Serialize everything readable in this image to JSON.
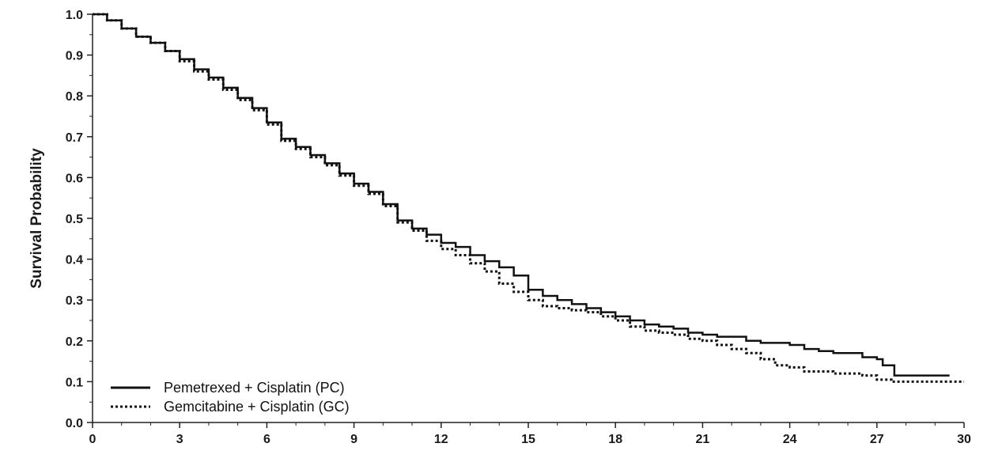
{
  "chart_data": {
    "type": "line",
    "title": "",
    "xlabel": "",
    "ylabel": "Survival Probability",
    "xlim": [
      0,
      30
    ],
    "ylim": [
      0,
      1.0
    ],
    "x_ticks": [
      "0",
      "3",
      "6",
      "9",
      "12",
      "15",
      "18",
      "21",
      "24",
      "27",
      "30"
    ],
    "y_ticks": [
      "0.0",
      "0.1",
      "0.2",
      "0.3",
      "0.4",
      "0.5",
      "0.6",
      "0.7",
      "0.8",
      "0.9",
      "1.0"
    ],
    "grid": false,
    "legend_position": "bottom-left",
    "series": [
      {
        "name": "Pemetrexed + Cisplatin (PC)",
        "style": "solid",
        "color": "#111111",
        "points": [
          [
            0,
            1.0
          ],
          [
            0.5,
            0.985
          ],
          [
            1,
            0.965
          ],
          [
            1.5,
            0.945
          ],
          [
            2,
            0.93
          ],
          [
            2.5,
            0.91
          ],
          [
            3,
            0.89
          ],
          [
            3.5,
            0.865
          ],
          [
            4,
            0.845
          ],
          [
            4.5,
            0.82
          ],
          [
            5,
            0.795
          ],
          [
            5.5,
            0.77
          ],
          [
            6,
            0.735
          ],
          [
            6.5,
            0.695
          ],
          [
            7,
            0.675
          ],
          [
            7.5,
            0.655
          ],
          [
            8,
            0.635
          ],
          [
            8.5,
            0.61
          ],
          [
            9,
            0.585
          ],
          [
            9.5,
            0.565
          ],
          [
            10,
            0.535
          ],
          [
            10.5,
            0.495
          ],
          [
            11,
            0.475
          ],
          [
            11.5,
            0.46
          ],
          [
            12,
            0.44
          ],
          [
            12.5,
            0.43
          ],
          [
            13,
            0.41
          ],
          [
            13.5,
            0.395
          ],
          [
            14,
            0.38
          ],
          [
            14.5,
            0.36
          ],
          [
            15,
            0.325
          ],
          [
            15.5,
            0.31
          ],
          [
            16,
            0.3
          ],
          [
            16.5,
            0.29
          ],
          [
            17,
            0.28
          ],
          [
            17.5,
            0.27
          ],
          [
            18,
            0.26
          ],
          [
            18.5,
            0.25
          ],
          [
            19,
            0.24
          ],
          [
            19.5,
            0.235
          ],
          [
            20,
            0.23
          ],
          [
            20.5,
            0.22
          ],
          [
            21,
            0.215
          ],
          [
            21.5,
            0.21
          ],
          [
            22,
            0.21
          ],
          [
            22.5,
            0.2
          ],
          [
            23,
            0.195
          ],
          [
            23.5,
            0.195
          ],
          [
            24,
            0.19
          ],
          [
            24.5,
            0.18
          ],
          [
            25,
            0.175
          ],
          [
            25.5,
            0.17
          ],
          [
            26,
            0.17
          ],
          [
            26.5,
            0.16
          ],
          [
            27,
            0.155
          ],
          [
            27.2,
            0.14
          ],
          [
            27.5,
            0.14
          ],
          [
            27.6,
            0.115
          ],
          [
            28,
            0.115
          ],
          [
            28.5,
            0.115
          ],
          [
            29,
            0.115
          ],
          [
            29.5,
            0.115
          ]
        ]
      },
      {
        "name": "Gemcitabine + Cisplatin (GC)",
        "style": "dotted",
        "color": "#111111",
        "points": [
          [
            0,
            1.0
          ],
          [
            0.5,
            0.985
          ],
          [
            1,
            0.965
          ],
          [
            1.5,
            0.945
          ],
          [
            2,
            0.93
          ],
          [
            2.5,
            0.91
          ],
          [
            3,
            0.885
          ],
          [
            3.5,
            0.86
          ],
          [
            4,
            0.84
          ],
          [
            4.5,
            0.815
          ],
          [
            5,
            0.79
          ],
          [
            5.5,
            0.765
          ],
          [
            6,
            0.73
          ],
          [
            6.5,
            0.69
          ],
          [
            7,
            0.67
          ],
          [
            7.5,
            0.65
          ],
          [
            8,
            0.63
          ],
          [
            8.5,
            0.605
          ],
          [
            9,
            0.58
          ],
          [
            9.5,
            0.56
          ],
          [
            10,
            0.53
          ],
          [
            10.5,
            0.49
          ],
          [
            11,
            0.47
          ],
          [
            11.5,
            0.445
          ],
          [
            12,
            0.425
          ],
          [
            12.5,
            0.41
          ],
          [
            13,
            0.39
          ],
          [
            13.5,
            0.37
          ],
          [
            14,
            0.34
          ],
          [
            14.5,
            0.32
          ],
          [
            15,
            0.3
          ],
          [
            15.5,
            0.285
          ],
          [
            16,
            0.28
          ],
          [
            16.5,
            0.275
          ],
          [
            17,
            0.27
          ],
          [
            17.5,
            0.26
          ],
          [
            18,
            0.25
          ],
          [
            18.5,
            0.235
          ],
          [
            19,
            0.225
          ],
          [
            19.5,
            0.22
          ],
          [
            20,
            0.215
          ],
          [
            20.5,
            0.205
          ],
          [
            21,
            0.2
          ],
          [
            21.5,
            0.19
          ],
          [
            22,
            0.18
          ],
          [
            22.5,
            0.17
          ],
          [
            23,
            0.155
          ],
          [
            23.5,
            0.14
          ],
          [
            24,
            0.135
          ],
          [
            24.5,
            0.125
          ],
          [
            25,
            0.125
          ],
          [
            25.5,
            0.12
          ],
          [
            26,
            0.12
          ],
          [
            26.5,
            0.115
          ],
          [
            27,
            0.105
          ],
          [
            27.5,
            0.1
          ],
          [
            28,
            0.1
          ],
          [
            28.5,
            0.1
          ],
          [
            29,
            0.1
          ],
          [
            29.5,
            0.1
          ],
          [
            30,
            0.1
          ]
        ]
      }
    ]
  }
}
